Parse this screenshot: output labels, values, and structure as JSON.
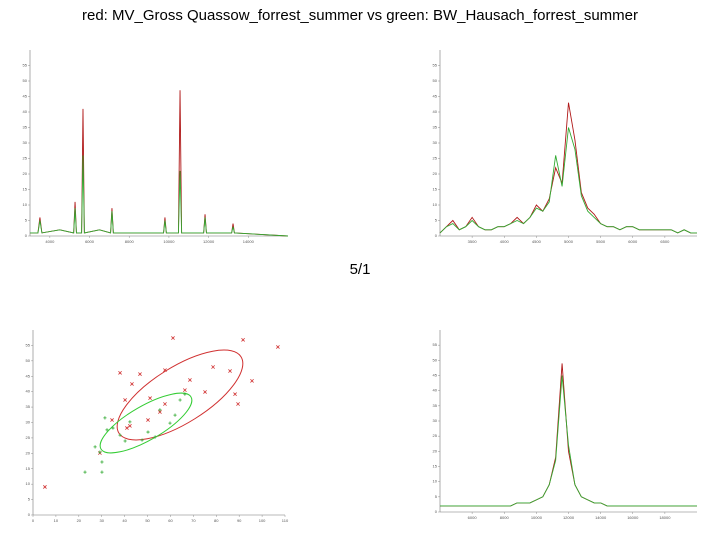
{
  "title": "red: MV_Gross Quassow_forrest_summer vs green: BW_Hausach_forrest_summer",
  "page_label": "5/1",
  "chart_data": [
    {
      "type": "line",
      "x": [
        3000,
        3400,
        3500,
        3600,
        4500,
        5200,
        5270,
        5340,
        5600,
        5670,
        5740,
        6500,
        7060,
        7130,
        7200,
        8500,
        9730,
        9800,
        9870,
        10480,
        10560,
        10640,
        11750,
        11820,
        11890,
        13160,
        13230,
        13300,
        16000
      ],
      "series": [
        {
          "name": "red",
          "color": "#b01818",
          "values": [
            1,
            1,
            6,
            1,
            2,
            1,
            11,
            1,
            1,
            41,
            1,
            2,
            1,
            9,
            1,
            1,
            1,
            6,
            1,
            1,
            47,
            1,
            1,
            7,
            1,
            1,
            4,
            1,
            0
          ]
        },
        {
          "name": "green",
          "color": "#33aa33",
          "values": [
            1,
            1,
            5,
            1,
            2,
            1,
            9,
            1,
            1,
            26,
            1,
            2,
            1,
            8,
            1,
            1,
            1,
            5,
            1,
            1,
            21,
            1,
            1,
            6,
            1,
            1,
            3,
            1,
            0
          ]
        }
      ],
      "xlim": [
        3000,
        16000
      ],
      "xticks": [
        4000,
        6000,
        8000,
        10000,
        12000,
        14000
      ],
      "ylim": [
        0,
        60
      ],
      "yticks": [
        0,
        5,
        10,
        15,
        20,
        25,
        30,
        35,
        40,
        45,
        50,
        55
      ]
    },
    {
      "type": "line",
      "x": [
        3000,
        3100,
        3200,
        3300,
        3400,
        3500,
        3600,
        3700,
        3800,
        3900,
        4000,
        4100,
        4200,
        4300,
        4400,
        4500,
        4600,
        4700,
        4800,
        4900,
        5000,
        5100,
        5200,
        5300,
        5400,
        5500,
        5600,
        5700,
        5800,
        5900,
        6000,
        6100,
        6200,
        6300,
        6400,
        6500,
        6600,
        6700,
        6800,
        6900,
        7000
      ],
      "series": [
        {
          "name": "red",
          "color": "#b01818",
          "values": [
            1,
            3,
            5,
            2,
            3,
            6,
            3,
            2,
            2,
            3,
            3,
            4,
            6,
            4,
            6,
            10,
            8,
            12,
            22,
            17,
            43,
            31,
            14,
            9,
            7,
            4,
            3,
            3,
            2,
            3,
            3,
            2,
            2,
            2,
            2,
            2,
            2,
            1,
            2,
            1,
            1
          ]
        },
        {
          "name": "green",
          "color": "#33aa33",
          "values": [
            1,
            3,
            4,
            2,
            3,
            5,
            3,
            2,
            2,
            3,
            3,
            4,
            5,
            4,
            6,
            9,
            8,
            11,
            26,
            16,
            35,
            28,
            13,
            8,
            6,
            4,
            3,
            3,
            2,
            3,
            3,
            2,
            2,
            2,
            2,
            2,
            2,
            1,
            2,
            1,
            1
          ]
        }
      ],
      "xlim": [
        3000,
        7000
      ],
      "xticks": [
        3500,
        4000,
        4500,
        5000,
        5500,
        6000,
        6500
      ],
      "ylim": [
        0,
        60
      ],
      "yticks": [
        0,
        5,
        10,
        15,
        20,
        25,
        30,
        35,
        40,
        45,
        50,
        55
      ]
    },
    {
      "type": "scatter",
      "series": [
        {
          "name": "red",
          "color": "#d03030",
          "x": [
            5.2,
            61.1,
            91.7,
            106.9,
            38.0,
            43.2,
            46.7,
            57.6,
            68.5,
            78.6,
            86.0,
            95.6,
            40.2,
            51.1,
            57.6,
            66.3,
            75.1,
            88.2,
            89.5,
            34.5,
            42.3,
            55.4,
            41.0,
            29.2,
            50.2
          ],
          "values": [
            9.1,
            57.4,
            56.8,
            54.5,
            46.1,
            42.5,
            45.7,
            47.0,
            43.8,
            48.0,
            46.7,
            43.5,
            37.3,
            37.9,
            36.0,
            40.5,
            39.9,
            39.2,
            36.0,
            30.8,
            28.9,
            33.4,
            28.2,
            20.1,
            30.8
          ]
        },
        {
          "name": "green",
          "color": "#33aa33",
          "x": [
            22.7,
            30.1,
            31.4,
            32.3,
            27.1,
            29.2,
            38.0,
            42.3,
            50.2,
            53.3,
            55.4,
            62.0,
            64.2,
            66.3,
            59.8,
            47.6,
            30.1,
            40.2,
            34.9
          ],
          "values": [
            13.9,
            13.9,
            31.5,
            27.6,
            22.1,
            20.4,
            25.9,
            30.2,
            26.9,
            25.3,
            34.1,
            32.4,
            37.3,
            39.2,
            29.8,
            24.3,
            17.2,
            24.0,
            28.2
          ]
        }
      ],
      "xlim": [
        0,
        110
      ],
      "xticks": [
        0,
        10,
        20,
        30,
        40,
        50,
        60,
        70,
        80,
        90,
        100,
        110
      ],
      "ylim": [
        0,
        60
      ],
      "yticks": [
        0,
        5,
        10,
        15,
        20,
        25,
        30,
        35,
        40,
        45,
        50,
        55
      ]
    },
    {
      "type": "line",
      "x": [
        4000,
        4400,
        4800,
        5200,
        5600,
        6000,
        6400,
        6800,
        7200,
        7600,
        8000,
        8400,
        8800,
        9200,
        9600,
        10000,
        10400,
        10800,
        11200,
        11600,
        12000,
        12400,
        12800,
        13200,
        13600,
        14000,
        14400,
        14800,
        15200,
        15600,
        16000,
        16400,
        16800,
        17200,
        17600,
        18000,
        18400,
        18800,
        19200,
        19600,
        20000
      ],
      "series": [
        {
          "name": "red",
          "color": "#b01818",
          "values": [
            2,
            2,
            2,
            2,
            2,
            2,
            2,
            2,
            2,
            2,
            2,
            2,
            3,
            3,
            3,
            4,
            5,
            9,
            18,
            49,
            20,
            9,
            5,
            4,
            3,
            3,
            2,
            2,
            2,
            2,
            2,
            2,
            2,
            2,
            2,
            2,
            2,
            2,
            2,
            2,
            2
          ]
        },
        {
          "name": "green",
          "color": "#33aa33",
          "values": [
            2,
            2,
            2,
            2,
            2,
            2,
            2,
            2,
            2,
            2,
            2,
            2,
            3,
            3,
            3,
            4,
            5,
            9,
            17,
            45,
            22,
            9,
            5,
            4,
            3,
            3,
            2,
            2,
            2,
            2,
            2,
            2,
            2,
            2,
            2,
            2,
            2,
            2,
            2,
            2,
            2
          ]
        }
      ],
      "xlim": [
        4000,
        20000
      ],
      "xticks": [
        6000,
        8000,
        10000,
        12000,
        14000,
        16000,
        18000
      ],
      "ylim": [
        0,
        60
      ],
      "yticks": [
        0,
        5,
        10,
        15,
        20,
        25,
        30,
        35,
        40,
        45,
        50,
        55
      ]
    }
  ]
}
